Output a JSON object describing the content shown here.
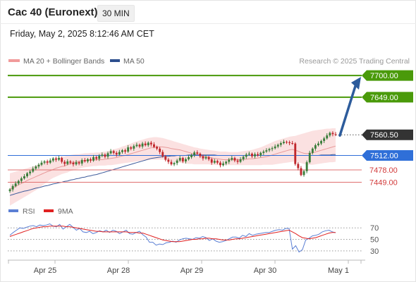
{
  "header": {
    "title": "Cac 40 (Euronext)",
    "interval": "30 MIN",
    "datetime": "Friday, May 2, 2025 8:12:46 AM CET"
  },
  "legend": {
    "bollinger": "MA 20 + Bollinger Bands",
    "ma50": "MA 50",
    "rsi": "RSI",
    "rsi_ma": "9MA"
  },
  "credit": "Research © 2025 Trading Central",
  "colors": {
    "green_level": "#4a9a0a",
    "blue_level": "#2f6fd8",
    "red_level": "#e07070",
    "current_tag": "#333333",
    "candle_up": "#3a7d3a",
    "candle_down": "#c0282d",
    "bollinger_fill": "#fadcdc",
    "ma20": "#e89a9a",
    "ma50": "#3c5a9a",
    "arrow": "#2d5c9c",
    "rsi": "#5b7fd4",
    "rsi_ma": "#e02020"
  },
  "chart_data": {
    "type": "candlestick",
    "instrument": "Cac 40 (Euronext)",
    "interval": "30 MIN",
    "y_range": [
      7405,
      7720
    ],
    "x_labels": [
      "Apr 25",
      "Apr 28",
      "Apr 29",
      "Apr 30",
      "May 1"
    ],
    "levels": [
      {
        "name": "resistance-2",
        "value": 7700.0,
        "label": "7700.00",
        "style": "green-tag"
      },
      {
        "name": "resistance-1",
        "value": 7649.0,
        "label": "7649.00",
        "style": "green-tag"
      },
      {
        "name": "current-price",
        "value": 7560.5,
        "label": "7560.50",
        "style": "dark-tag"
      },
      {
        "name": "pivot",
        "value": 7512.0,
        "label": "7512.00",
        "style": "blue-tag"
      },
      {
        "name": "support-1",
        "value": 7478.0,
        "label": "7478.00",
        "style": "red-text"
      },
      {
        "name": "support-2",
        "value": 7449.0,
        "label": "7449.00",
        "style": "red-text"
      }
    ],
    "target_arrow": {
      "from": 7560.5,
      "to": 7700.0
    },
    "closes": [
      7432,
      7440,
      7446,
      7452,
      7458,
      7463,
      7470,
      7474,
      7481,
      7486,
      7490,
      7495,
      7498,
      7495,
      7500,
      7505,
      7502,
      7506,
      7497,
      7492,
      7498,
      7495,
      7491,
      7496,
      7493,
      7501,
      7498,
      7503,
      7500,
      7508,
      7504,
      7511,
      7514,
      7509,
      7517,
      7522,
      7518,
      7514,
      7520,
      7524,
      7521,
      7531,
      7528,
      7534,
      7537,
      7533,
      7540,
      7536,
      7542,
      7538,
      7532,
      7528,
      7520,
      7510,
      7502,
      7497,
      7491,
      7494,
      7500,
      7506,
      7498,
      7503,
      7508,
      7513,
      7519,
      7516,
      7510,
      7505,
      7508,
      7503,
      7495,
      7499,
      7495,
      7489,
      7493,
      7497,
      7502,
      7506,
      7500,
      7497,
      7503,
      7509,
      7514,
      7516,
      7510,
      7515,
      7512,
      7518,
      7521,
      7524,
      7527,
      7529,
      7533,
      7537,
      7541,
      7544,
      7543,
      7541,
      7540,
      7492,
      7482,
      7466,
      7475,
      7496,
      7518,
      7528,
      7536,
      7540,
      7546,
      7552,
      7559,
      7565,
      7562,
      7560.5
    ],
    "ma20": [
      7432,
      7436,
      7439,
      7443,
      7446,
      7449,
      7453,
      7456,
      7459,
      7462,
      7465,
      7468,
      7471,
      7474,
      7476,
      7479,
      7482,
      7484,
      7486,
      7487,
      7490,
      7493,
      7495,
      7497,
      7498,
      7499,
      7500,
      7501,
      7501,
      7501,
      7502,
      7502,
      7502,
      7503,
      7504,
      7505,
      7506,
      7507,
      7509,
      7511,
      7512,
      7514,
      7516,
      7518,
      7520,
      7522,
      7524,
      7526,
      7528,
      7530,
      7531,
      7532,
      7532,
      7532,
      7531,
      7530,
      7528,
      7527,
      7526,
      7525,
      7523,
      7521,
      7519,
      7517,
      7515,
      7513,
      7511,
      7510,
      7509,
      7508,
      7506,
      7505,
      7504,
      7503,
      7502,
      7502,
      7502,
      7502,
      7502,
      7502,
      7502,
      7503,
      7503,
      7504,
      7504,
      7505,
      7506,
      7507,
      7508,
      7509,
      7511,
      7513,
      7515,
      7517,
      7519,
      7521,
      7523,
      7525,
      7526,
      7524,
      7522,
      7519,
      7517,
      7516,
      7517,
      7518,
      7520,
      7522,
      7524,
      7526,
      7528,
      7530,
      7532,
      7534
    ],
    "ma50": [
      7418,
      7420,
      7422,
      7424,
      7426,
      7428,
      7429,
      7431,
      7433,
      7435,
      7436,
      7438,
      7440,
      7441,
      7443,
      7445,
      7446,
      7448,
      7449,
      7451,
      7452,
      7454,
      7455,
      7457,
      7458,
      7460,
      7461,
      7463,
      7464,
      7466,
      7467,
      7469,
      7471,
      7473,
      7475,
      7477,
      7479,
      7481,
      7483,
      7485,
      7487,
      7489,
      7491,
      7493,
      7495,
      7497,
      7499,
      7501,
      7503,
      7505,
      7506,
      7507,
      7508,
      7509,
      7510,
      7510,
      7511,
      7511,
      7512,
      7512,
      7512,
      7512,
      7513,
      7513,
      7513,
      7513,
      7513,
      7513,
      7513,
      7513,
      7513,
      7513,
      7512,
      7512,
      7512,
      7512,
      7512,
      7512,
      7512,
      7512,
      7512,
      7512,
      7512,
      7512,
      7512,
      7512,
      7512,
      7512,
      7512,
      7512,
      7512,
      7512,
      7512,
      7512,
      7512,
      7512,
      7512,
      7512,
      7512,
      7512,
      7512,
      7512,
      7512,
      7512,
      7512,
      7512,
      7512,
      7512,
      7513,
      7513,
      7513,
      7513,
      7514,
      7514
    ],
    "bb_upper": [
      7470,
      7472,
      7474,
      7476,
      7478,
      7480,
      7482,
      7484,
      7486,
      7488,
      7491,
      7493,
      7496,
      7499,
      7501,
      7503,
      7505,
      7507,
      7509,
      7510,
      7512,
      7513,
      7514,
      7515,
      7515,
      7516,
      7517,
      7517,
      7518,
      7518,
      7519,
      7519,
      7520,
      7521,
      7522,
      7524,
      7526,
      7528,
      7530,
      7533,
      7535,
      7538,
      7540,
      7543,
      7545,
      7547,
      7549,
      7551,
      7553,
      7554,
      7555,
      7555,
      7554,
      7553,
      7551,
      7549,
      7547,
      7545,
      7543,
      7541,
      7539,
      7537,
      7535,
      7533,
      7531,
      7530,
      7528,
      7527,
      7526,
      7525,
      7524,
      7523,
      7522,
      7521,
      7521,
      7521,
      7520,
      7520,
      7520,
      7520,
      7521,
      7522,
      7523,
      7524,
      7525,
      7527,
      7529,
      7531,
      7534,
      7537,
      7540,
      7543,
      7546,
      7548,
      7550,
      7552,
      7554,
      7556,
      7557,
      7558,
      7560,
      7562,
      7564,
      7566,
      7568,
      7570,
      7571,
      7572,
      7573,
      7574,
      7575,
      7575,
      7576,
      7576
    ],
    "bb_lower": [
      7394,
      7398,
      7402,
      7406,
      7410,
      7414,
      7418,
      7422,
      7426,
      7430,
      7435,
      7440,
      7445,
      7450,
      7455,
      7459,
      7462,
      7465,
      7468,
      7470,
      7472,
      7475,
      7477,
      7479,
      7481,
      7483,
      7484,
      7485,
      7486,
      7487,
      7487,
      7488,
      7488,
      7488,
      7489,
      7489,
      7490,
      7491,
      7492,
      7493,
      7494,
      7495,
      7496,
      7497,
      7498,
      7499,
      7500,
      7501,
      7501,
      7502,
      7502,
      7502,
      7502,
      7502,
      7501,
      7500,
      7498,
      7497,
      7496,
      7495,
      7494,
      7493,
      7492,
      7492,
      7491,
      7491,
      7491,
      7491,
      7491,
      7491,
      7490,
      7490,
      7489,
      7489,
      7489,
      7489,
      7489,
      7489,
      7489,
      7489,
      7489,
      7489,
      7489,
      7489,
      7489,
      7489,
      7489,
      7489,
      7490,
      7490,
      7490,
      7490,
      7491,
      7492,
      7493,
      7494,
      7495,
      7496,
      7497,
      7498,
      7496,
      7494,
      7492,
      7490,
      7490,
      7490,
      7491,
      7492,
      7493,
      7494,
      7495,
      7496,
      7496,
      7497
    ],
    "rsi": {
      "y_ticks": [
        70,
        50,
        30
      ],
      "y_range": [
        20,
        85
      ],
      "rsi": [
        57,
        62,
        66,
        70,
        69,
        71,
        73,
        74,
        72,
        75,
        74,
        75,
        77,
        73,
        72,
        76,
        68,
        72,
        76,
        71,
        66,
        69,
        63,
        62,
        64,
        60,
        62,
        65,
        63,
        66,
        62,
        66,
        64,
        60,
        63,
        66,
        60,
        59,
        62,
        64,
        58,
        54,
        45,
        45,
        40,
        42,
        41,
        44,
        45,
        47,
        45,
        49,
        51,
        52,
        51,
        50,
        53,
        52,
        55,
        53,
        48,
        51,
        47,
        45,
        46,
        48,
        51,
        54,
        54,
        52,
        57,
        55,
        60,
        57,
        59,
        60,
        61,
        62,
        62,
        64,
        66,
        67,
        66,
        69,
        69,
        33,
        39,
        28,
        32,
        49,
        52,
        56,
        57,
        59,
        63,
        65,
        66,
        63,
        61.5
      ],
      "ma": [
        55,
        57,
        59,
        61,
        63,
        65,
        67,
        69,
        70,
        71,
        72,
        72,
        73,
        73,
        73,
        73,
        73,
        72,
        72,
        71,
        70,
        69,
        68,
        67,
        66,
        65,
        64,
        64,
        63,
        63,
        63,
        63,
        63,
        63,
        63,
        63,
        62,
        62,
        62,
        61,
        61,
        59,
        57,
        55,
        53,
        51,
        49,
        48,
        47,
        46,
        46,
        46,
        47,
        48,
        49,
        50,
        50,
        51,
        51,
        52,
        52,
        51,
        51,
        50,
        49,
        49,
        49,
        50,
        51,
        51,
        52,
        53,
        54,
        55,
        56,
        57,
        58,
        59,
        60,
        61,
        62,
        63,
        64,
        65,
        66,
        63,
        60,
        56,
        53,
        52,
        51,
        52,
        53,
        55,
        57,
        59,
        61,
        62,
        62
      ]
    }
  }
}
